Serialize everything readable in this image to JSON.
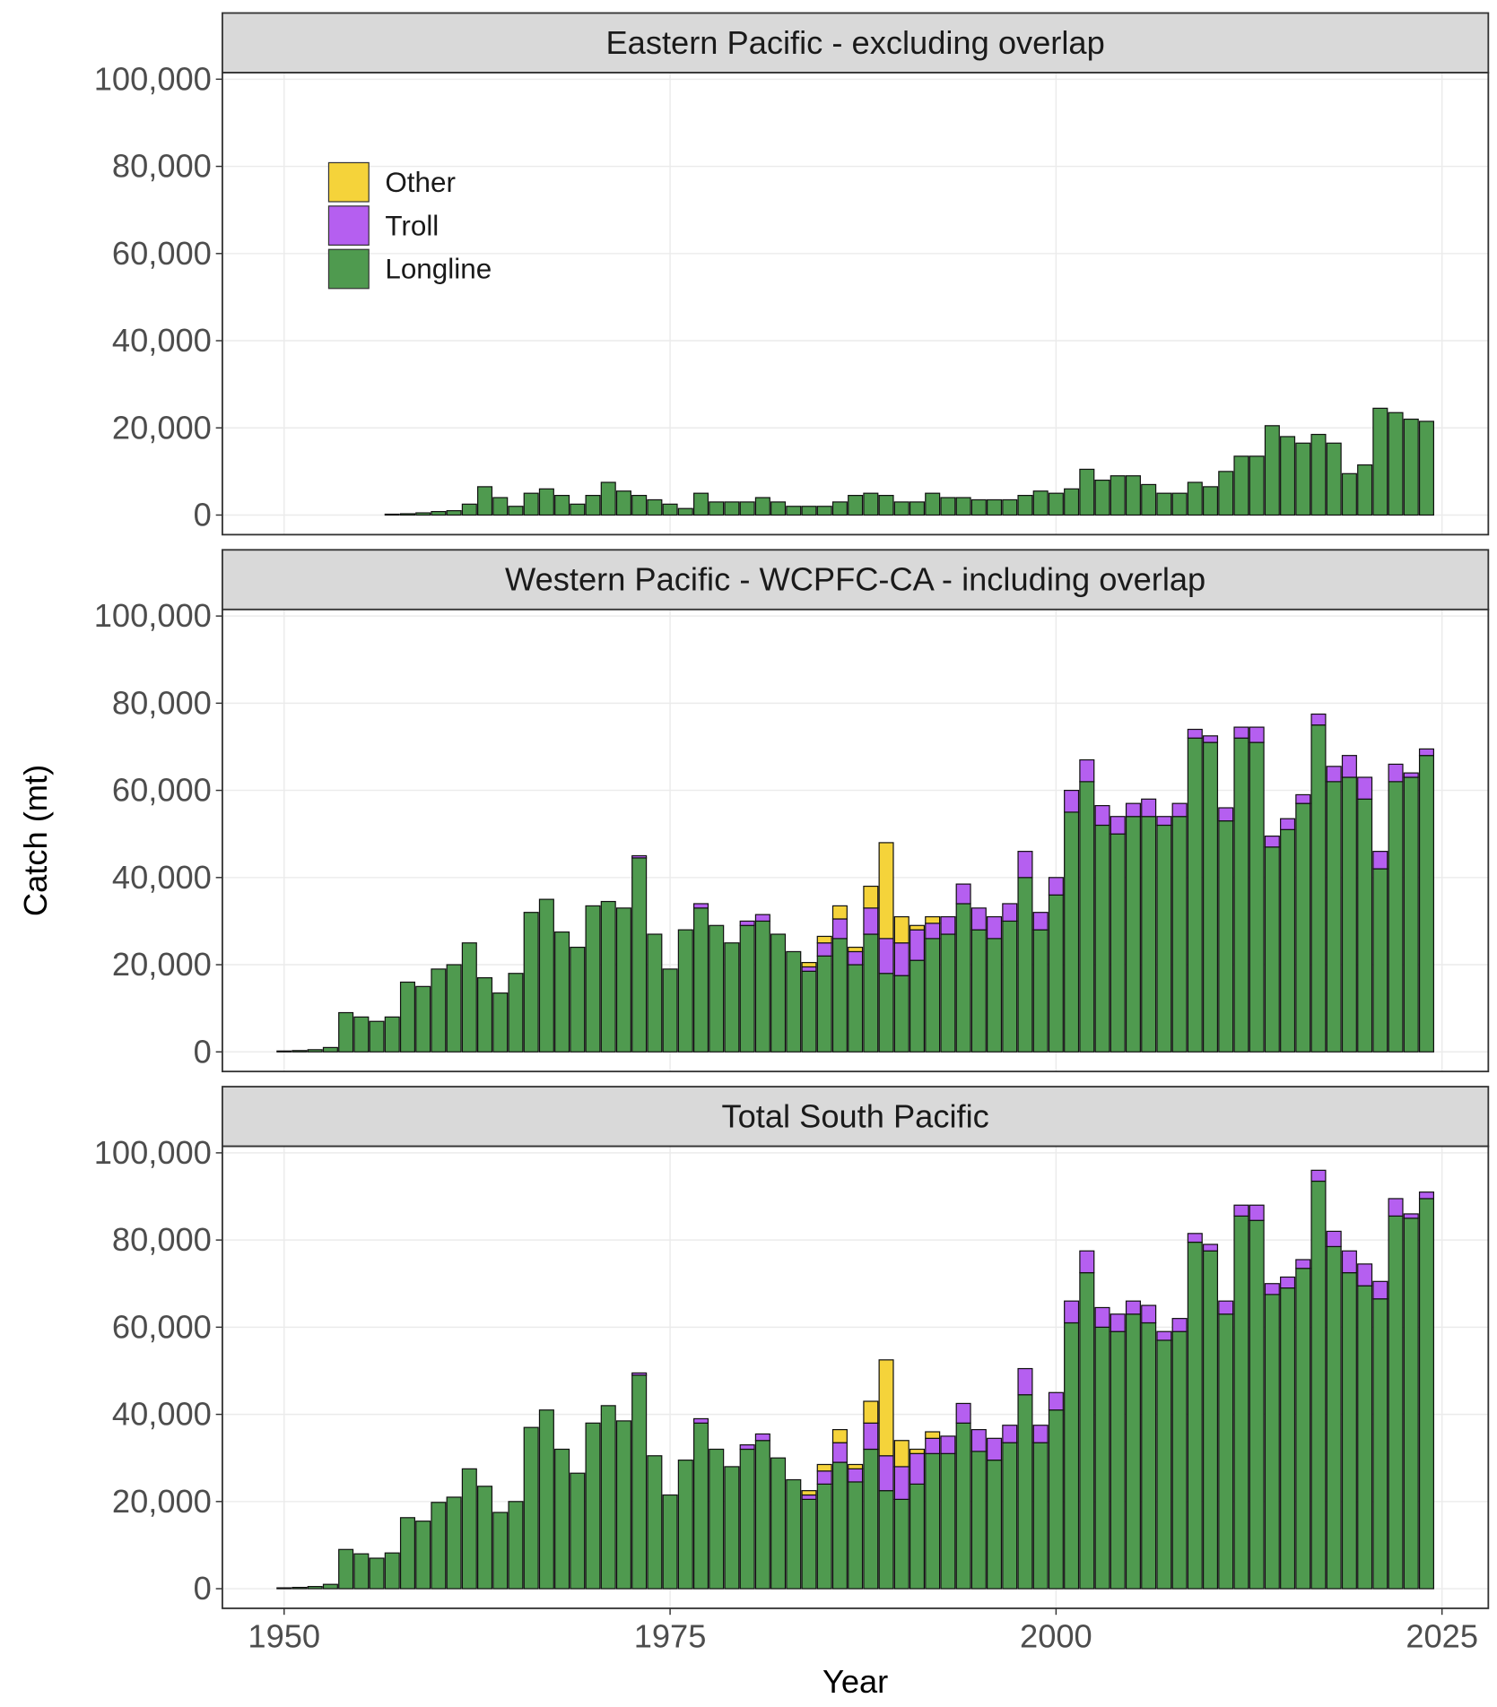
{
  "chart_data": [
    {
      "type": "bar",
      "title": "Eastern Pacific - excluding overlap",
      "x": [
        1950,
        1951,
        1952,
        1953,
        1954,
        1955,
        1956,
        1957,
        1958,
        1959,
        1960,
        1961,
        1962,
        1963,
        1964,
        1965,
        1966,
        1967,
        1968,
        1969,
        1970,
        1971,
        1972,
        1973,
        1974,
        1975,
        1976,
        1977,
        1978,
        1979,
        1980,
        1981,
        1982,
        1983,
        1984,
        1985,
        1986,
        1987,
        1988,
        1989,
        1990,
        1991,
        1992,
        1993,
        1994,
        1995,
        1996,
        1997,
        1998,
        1999,
        2000,
        2001,
        2002,
        2003,
        2004,
        2005,
        2006,
        2007,
        2008,
        2009,
        2010,
        2011,
        2012,
        2013,
        2014,
        2015,
        2016,
        2017,
        2018,
        2019,
        2020,
        2021,
        2022,
        2023,
        2024
      ],
      "series": [
        {
          "name": "Longline",
          "color": "#4f9a4f",
          "values": [
            null,
            null,
            null,
            null,
            null,
            null,
            null,
            200,
            300,
            500,
            800,
            1000,
            2500,
            6500,
            4000,
            2000,
            5000,
            6000,
            4500,
            2500,
            4500,
            7500,
            5500,
            4500,
            3500,
            2500,
            1500,
            5000,
            3000,
            3000,
            3000,
            4000,
            3000,
            2000,
            2000,
            2000,
            3000,
            4500,
            5000,
            4500,
            3000,
            3000,
            5000,
            4000,
            4000,
            3500,
            3500,
            3500,
            4500,
            5500,
            5000,
            6000,
            10500,
            8000,
            9000,
            9000,
            7000,
            5000,
            5000,
            7500,
            6500,
            10000,
            13500,
            13500,
            20500,
            18000,
            16500,
            18500,
            16500,
            9500,
            11500,
            24500,
            23500,
            22000,
            21500
          ]
        },
        {
          "name": "Troll",
          "color": "#b55ff0",
          "values": [
            0,
            0,
            0,
            0,
            0,
            0,
            0,
            0,
            0,
            0,
            0,
            0,
            0,
            0,
            0,
            0,
            0,
            0,
            0,
            0,
            0,
            0,
            0,
            0,
            0,
            0,
            0,
            0,
            0,
            0,
            0,
            0,
            0,
            0,
            0,
            0,
            0,
            0,
            0,
            0,
            0,
            0,
            0,
            0,
            0,
            0,
            0,
            0,
            0,
            0,
            0,
            0,
            0,
            0,
            0,
            0,
            0,
            0,
            0,
            0,
            0,
            0,
            0,
            0,
            0,
            0,
            0,
            0,
            0,
            0,
            0,
            0,
            0,
            0,
            0
          ]
        },
        {
          "name": "Other",
          "color": "#f5d33a",
          "values": [
            0,
            0,
            0,
            0,
            0,
            0,
            0,
            0,
            0,
            0,
            0,
            0,
            0,
            0,
            0,
            0,
            0,
            0,
            0,
            0,
            0,
            0,
            0,
            0,
            0,
            0,
            0,
            0,
            0,
            0,
            0,
            0,
            0,
            0,
            0,
            0,
            0,
            0,
            0,
            0,
            0,
            0,
            0,
            0,
            0,
            0,
            0,
            0,
            0,
            0,
            0,
            0,
            0,
            0,
            0,
            0,
            0,
            0,
            0,
            0,
            0,
            0,
            0,
            0,
            0,
            0,
            0,
            0,
            0,
            0,
            0,
            0,
            0,
            0,
            0
          ]
        }
      ],
      "xlim": [
        1946,
        2028
      ],
      "xticks": [
        1950,
        1975,
        2000,
        2025
      ],
      "ylim": [
        -4500,
        101500
      ],
      "yticks": [
        0,
        {
          "value": 20000,
          "label": "20,000"
        },
        {
          "value": 40000,
          "label": "40,000"
        },
        {
          "value": 60000,
          "label": "60,000"
        },
        {
          "value": 80000,
          "label": "80,000"
        },
        {
          "value": 100000,
          "label": "100,000"
        }
      ],
      "grid": true,
      "legend": "top-left"
    },
    {
      "type": "bar",
      "title": "Western Pacific - WCPFC-CA - including overlap",
      "y_label": "Catch (mt)",
      "x": [
        1950,
        1951,
        1952,
        1953,
        1954,
        1955,
        1956,
        1957,
        1958,
        1959,
        1960,
        1961,
        1962,
        1963,
        1964,
        1965,
        1966,
        1967,
        1968,
        1969,
        1970,
        1971,
        1972,
        1973,
        1974,
        1975,
        1976,
        1977,
        1978,
        1979,
        1980,
        1981,
        1982,
        1983,
        1984,
        1985,
        1986,
        1987,
        1988,
        1989,
        1990,
        1991,
        1992,
        1993,
        1994,
        1995,
        1996,
        1997,
        1998,
        1999,
        2000,
        2001,
        2002,
        2003,
        2004,
        2005,
        2006,
        2007,
        2008,
        2009,
        2010,
        2011,
        2012,
        2013,
        2014,
        2015,
        2016,
        2017,
        2018,
        2019,
        2020,
        2021,
        2022,
        2023,
        2024
      ],
      "series": [
        {
          "color": "#4f9a4f",
          "values": [
            200,
            300,
            500,
            1000,
            9000,
            8000,
            7000,
            8000,
            16000,
            15000,
            19000,
            20000,
            25000,
            17000,
            13500,
            18000,
            32000,
            35000,
            27500,
            24000,
            33500,
            34500,
            33000,
            44500,
            27000,
            19000,
            28000,
            33000,
            29000,
            25000,
            29000,
            30000,
            27000,
            23000,
            18500,
            22000,
            26000,
            20000,
            27000,
            18000,
            17500,
            21000,
            26000,
            27000,
            34000,
            28000,
            26000,
            30000,
            40000,
            28000,
            36000,
            55000,
            62000,
            52000,
            50000,
            54000,
            54000,
            52000,
            54000,
            72000,
            71000,
            53000,
            72000,
            71000,
            47000,
            51000,
            57000,
            75000,
            62000,
            63000,
            58000,
            42000,
            62000,
            63000,
            68000
          ]
        },
        {
          "color": "#b55ff0",
          "values": [
            0,
            0,
            0,
            0,
            0,
            0,
            0,
            0,
            0,
            0,
            0,
            0,
            0,
            0,
            0,
            0,
            0,
            0,
            0,
            0,
            0,
            0,
            0,
            500,
            0,
            0,
            0,
            1000,
            0,
            0,
            1000,
            1500,
            0,
            0,
            1000,
            3000,
            4500,
            3000,
            6000,
            8000,
            7500,
            7000,
            3500,
            4000,
            4500,
            5000,
            5000,
            4000,
            6000,
            4000,
            4000,
            5000,
            5000,
            4500,
            4000,
            3000,
            4000,
            2000,
            3000,
            2000,
            1500,
            3000,
            2500,
            3500,
            2500,
            2500,
            2000,
            2500,
            3500,
            5000,
            5000,
            4000,
            4000,
            1000,
            1500
          ]
        },
        {
          "color": "#f5d33a",
          "values": [
            0,
            0,
            0,
            0,
            0,
            0,
            0,
            0,
            0,
            0,
            0,
            0,
            0,
            0,
            0,
            0,
            0,
            0,
            0,
            0,
            0,
            0,
            0,
            0,
            0,
            0,
            0,
            0,
            0,
            0,
            0,
            0,
            0,
            0,
            1000,
            1500,
            3000,
            1000,
            5000,
            22000,
            6000,
            1000,
            1500,
            0,
            0,
            0,
            0,
            0,
            0,
            0,
            0,
            0,
            0,
            0,
            0,
            0,
            0,
            0,
            0,
            0,
            0,
            0,
            0,
            0,
            0,
            0,
            0,
            0,
            0,
            0,
            0,
            0,
            0,
            0,
            0
          ]
        }
      ],
      "xlim": [
        1946,
        2028
      ],
      "xticks": [
        1950,
        1975,
        2000,
        2025
      ],
      "ylim": [
        -4500,
        101500
      ],
      "yticks": [
        0,
        {
          "value": 20000,
          "label": "20,000"
        },
        {
          "value": 40000,
          "label": "40,000"
        },
        {
          "value": 60000,
          "label": "60,000"
        },
        {
          "value": 80000,
          "label": "80,000"
        },
        {
          "value": 100000,
          "label": "100,000"
        }
      ],
      "grid": true
    },
    {
      "type": "bar",
      "title": "Total South Pacific",
      "x_label": "Year",
      "x": [
        1950,
        1951,
        1952,
        1953,
        1954,
        1955,
        1956,
        1957,
        1958,
        1959,
        1960,
        1961,
        1962,
        1963,
        1964,
        1965,
        1966,
        1967,
        1968,
        1969,
        1970,
        1971,
        1972,
        1973,
        1974,
        1975,
        1976,
        1977,
        1978,
        1979,
        1980,
        1981,
        1982,
        1983,
        1984,
        1985,
        1986,
        1987,
        1988,
        1989,
        1990,
        1991,
        1992,
        1993,
        1994,
        1995,
        1996,
        1997,
        1998,
        1999,
        2000,
        2001,
        2002,
        2003,
        2004,
        2005,
        2006,
        2007,
        2008,
        2009,
        2010,
        2011,
        2012,
        2013,
        2014,
        2015,
        2016,
        2017,
        2018,
        2019,
        2020,
        2021,
        2022,
        2023,
        2024
      ],
      "series": [
        {
          "color": "#4f9a4f",
          "values": [
            200,
            300,
            500,
            1000,
            9000,
            8000,
            7000,
            8200,
            16300,
            15500,
            19800,
            21000,
            27500,
            23500,
            17500,
            20000,
            37000,
            41000,
            32000,
            26500,
            38000,
            42000,
            38500,
            49000,
            30500,
            21500,
            29500,
            38000,
            32000,
            28000,
            32000,
            34000,
            30000,
            25000,
            20500,
            24000,
            29000,
            24500,
            32000,
            22500,
            20500,
            24000,
            31000,
            31000,
            38000,
            31500,
            29500,
            33500,
            44500,
            33500,
            41000,
            61000,
            72500,
            60000,
            59000,
            63000,
            61000,
            57000,
            59000,
            79500,
            77500,
            63000,
            85500,
            84500,
            67500,
            69000,
            73500,
            93500,
            78500,
            72500,
            69500,
            66500,
            85500,
            85000,
            89500
          ]
        },
        {
          "color": "#b55ff0",
          "values": [
            0,
            0,
            0,
            0,
            0,
            0,
            0,
            0,
            0,
            0,
            0,
            0,
            0,
            0,
            0,
            0,
            0,
            0,
            0,
            0,
            0,
            0,
            0,
            500,
            0,
            0,
            0,
            1000,
            0,
            0,
            1000,
            1500,
            0,
            0,
            1000,
            3000,
            4500,
            3000,
            6000,
            8000,
            7500,
            7000,
            3500,
            4000,
            4500,
            5000,
            5000,
            4000,
            6000,
            4000,
            4000,
            5000,
            5000,
            4500,
            4000,
            3000,
            4000,
            2000,
            3000,
            2000,
            1500,
            3000,
            2500,
            3500,
            2500,
            2500,
            2000,
            2500,
            3500,
            5000,
            5000,
            4000,
            4000,
            1000,
            1500
          ]
        },
        {
          "color": "#f5d33a",
          "values": [
            0,
            0,
            0,
            0,
            0,
            0,
            0,
            0,
            0,
            0,
            0,
            0,
            0,
            0,
            0,
            0,
            0,
            0,
            0,
            0,
            0,
            0,
            0,
            0,
            0,
            0,
            0,
            0,
            0,
            0,
            0,
            0,
            0,
            0,
            1000,
            1500,
            3000,
            1000,
            5000,
            22000,
            6000,
            1000,
            1500,
            0,
            0,
            0,
            0,
            0,
            0,
            0,
            0,
            0,
            0,
            0,
            0,
            0,
            0,
            0,
            0,
            0,
            0,
            0,
            0,
            0,
            0,
            0,
            0,
            0,
            0,
            0,
            0,
            0,
            0,
            0,
            0
          ]
        }
      ],
      "xlim": [
        1946,
        2028
      ],
      "xticks": [
        1950,
        1975,
        2000,
        2025
      ],
      "ylim": [
        -4500,
        101500
      ],
      "yticks": [
        0,
        {
          "value": 20000,
          "label": "20,000"
        },
        {
          "value": 40000,
          "label": "40,000"
        },
        {
          "value": 60000,
          "label": "60,000"
        },
        {
          "value": 80000,
          "label": "80,000"
        },
        {
          "value": 100000,
          "label": "100,000"
        }
      ],
      "grid": true
    }
  ]
}
